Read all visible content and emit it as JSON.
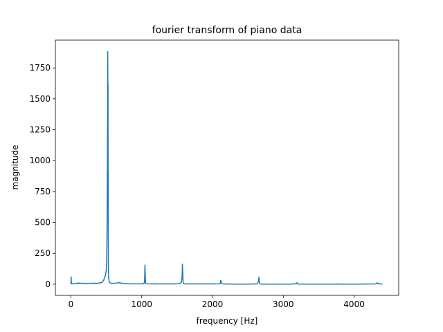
{
  "chart_data": {
    "type": "line",
    "title": "fourier transform of piano data",
    "xlabel": "frequency [Hz]",
    "ylabel": "magnitude",
    "xlim": [
      -220,
      4630
    ],
    "ylim": [
      -90,
      1975
    ],
    "xticks": [
      0,
      1000,
      2000,
      3000,
      4000
    ],
    "yticks": [
      0,
      250,
      500,
      750,
      1000,
      1250,
      1500,
      1750
    ],
    "grid": false,
    "line_color": "#1f77b4",
    "series": [
      {
        "x": [
          0,
          3,
          6,
          10,
          30,
          60,
          90,
          100,
          105,
          110,
          130,
          150,
          180,
          200,
          230,
          260,
          290,
          320,
          330,
          335,
          350,
          380,
          420,
          440,
          460,
          480,
          490,
          500,
          505,
          510,
          515,
          518,
          520,
          522,
          523,
          524,
          525,
          526,
          527,
          528,
          530,
          532,
          535,
          540,
          550,
          565,
          600,
          640,
          680,
          700,
          720,
          760,
          800,
          850,
          900,
          950,
          1000,
          1030,
          1040,
          1045,
          1048,
          1051,
          1054,
          1060,
          1080,
          1150,
          1250,
          1350,
          1450,
          1530,
          1560,
          1570,
          1575,
          1579,
          1582,
          1586,
          1592,
          1610,
          1700,
          1850,
          2000,
          2100,
          2110,
          2115,
          2120,
          2128,
          2140,
          2300,
          2500,
          2630,
          2650,
          2655,
          2659,
          2662,
          2665,
          2672,
          2690,
          2900,
          3100,
          3180,
          3195,
          3200,
          3205,
          3215,
          3300,
          3600,
          3750,
          3760,
          3770,
          3900,
          4100,
          4300,
          4320,
          4330,
          4340,
          4400
        ],
        "y": [
          2,
          60,
          5,
          2,
          4,
          6,
          3,
          12,
          8,
          6,
          10,
          5,
          8,
          4,
          7,
          6,
          9,
          5,
          10,
          7,
          5,
          8,
          12,
          15,
          30,
          60,
          80,
          120,
          200,
          450,
          1000,
          1420,
          1882,
          1500,
          830,
          1625,
          600,
          900,
          300,
          180,
          120,
          70,
          40,
          20,
          12,
          8,
          7,
          9,
          12,
          10,
          8,
          5,
          4,
          3,
          3,
          3,
          3,
          5,
          20,
          155,
          100,
          60,
          10,
          5,
          3,
          2,
          2,
          2,
          2,
          4,
          15,
          60,
          162,
          100,
          40,
          10,
          5,
          2,
          2,
          2,
          2,
          3,
          8,
          30,
          25,
          8,
          2,
          1,
          1,
          3,
          20,
          58,
          35,
          15,
          5,
          2,
          1,
          1,
          1,
          3,
          12,
          8,
          2,
          1,
          1,
          1,
          1,
          3,
          1,
          1,
          1,
          2,
          8,
          12,
          3,
          1
        ]
      }
    ]
  }
}
